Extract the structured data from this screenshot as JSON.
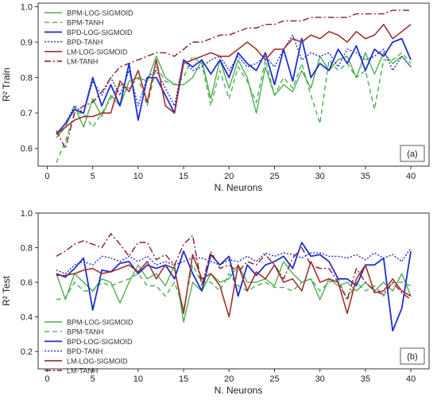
{
  "chart_data": [
    {
      "type": "line",
      "panel_tag": "(a)",
      "xlabel": "N. Neurons",
      "ylabel": "R² Train",
      "xlim": [
        -1,
        42
      ],
      "ylim": [
        0.55,
        1.01
      ],
      "xticks": [
        0,
        5,
        10,
        15,
        20,
        25,
        30,
        35,
        40
      ],
      "yticks": [
        0.6,
        0.7,
        0.8,
        0.9,
        1.0
      ],
      "ytick_labels": [
        "0.6",
        "0.7",
        "0.8",
        "0.9",
        "1.0"
      ],
      "legend_position": "top-left",
      "x": [
        1,
        2,
        3,
        4,
        5,
        6,
        7,
        8,
        9,
        10,
        11,
        12,
        13,
        14,
        15,
        16,
        17,
        18,
        19,
        20,
        21,
        22,
        23,
        24,
        25,
        26,
        27,
        28,
        29,
        30,
        31,
        32,
        33,
        34,
        35,
        36,
        37,
        38,
        39,
        40
      ],
      "series": [
        {
          "name": "BPM-LOG-SIGMOID",
          "color": "#4caf50",
          "dash": "solid",
          "width": 1.4,
          "values": [
            0.63,
            0.66,
            0.72,
            0.66,
            0.74,
            0.69,
            0.75,
            0.72,
            0.79,
            0.8,
            0.79,
            0.86,
            0.8,
            0.78,
            0.78,
            0.8,
            0.85,
            0.74,
            0.85,
            0.77,
            0.85,
            0.8,
            0.7,
            0.83,
            0.75,
            0.78,
            0.76,
            0.82,
            0.77,
            0.86,
            0.82,
            0.85,
            0.86,
            0.8,
            0.87,
            0.81,
            0.87,
            0.84,
            0.86,
            0.83
          ]
        },
        {
          "name": "BPM-TANH",
          "color": "#4caf50",
          "dash": "6,4",
          "width": 1.4,
          "values": [
            0.56,
            0.62,
            0.7,
            0.7,
            0.66,
            0.7,
            0.74,
            0.78,
            0.77,
            0.8,
            0.72,
            0.83,
            0.79,
            0.78,
            0.8,
            0.86,
            0.84,
            0.72,
            0.82,
            0.74,
            0.83,
            0.79,
            0.73,
            0.85,
            0.75,
            0.8,
            0.77,
            0.84,
            0.75,
            0.67,
            0.85,
            0.82,
            0.84,
            0.8,
            0.82,
            0.71,
            0.85,
            0.85,
            0.87,
            0.84
          ]
        },
        {
          "name": "BPD-LOG-SIGMOID",
          "color": "#1f2fd0",
          "dash": "solid",
          "width": 1.8,
          "values": [
            0.64,
            0.67,
            0.71,
            0.7,
            0.8,
            0.72,
            0.78,
            0.72,
            0.84,
            0.68,
            0.8,
            0.8,
            0.75,
            0.7,
            0.85,
            0.83,
            0.85,
            0.81,
            0.85,
            0.8,
            0.87,
            0.84,
            0.82,
            0.87,
            0.78,
            0.88,
            0.79,
            0.91,
            0.8,
            0.84,
            0.82,
            0.88,
            0.84,
            0.89,
            0.82,
            0.88,
            0.86,
            0.9,
            0.91,
            0.85
          ]
        },
        {
          "name": "BPD-TANH",
          "color": "#1f2fd0",
          "dash": "2,2",
          "width": 1.4,
          "values": [
            0.64,
            0.67,
            0.72,
            0.7,
            0.79,
            0.75,
            0.8,
            0.75,
            0.82,
            0.72,
            0.8,
            0.82,
            0.77,
            0.72,
            0.85,
            0.82,
            0.83,
            0.85,
            0.86,
            0.82,
            0.86,
            0.83,
            0.84,
            0.86,
            0.83,
            0.88,
            0.92,
            0.85,
            0.87,
            0.86,
            0.87,
            0.83,
            0.88,
            0.87,
            0.85,
            0.86,
            0.88,
            0.82,
            0.86,
            0.83
          ]
        },
        {
          "name": "LM-LOG-SIGMOID",
          "color": "#a33030",
          "dash": "solid",
          "width": 1.6,
          "values": [
            0.64,
            0.66,
            0.68,
            0.69,
            0.69,
            0.7,
            0.7,
            0.79,
            0.76,
            0.82,
            0.73,
            0.85,
            0.72,
            0.7,
            0.84,
            0.85,
            0.86,
            0.87,
            0.86,
            0.86,
            0.88,
            0.9,
            0.88,
            0.85,
            0.88,
            0.88,
            0.91,
            0.9,
            0.92,
            0.91,
            0.93,
            0.92,
            0.9,
            0.93,
            0.91,
            0.92,
            0.95,
            0.91,
            0.93,
            0.95
          ]
        },
        {
          "name": "LM-TANH",
          "color": "#8b1c24",
          "dash": "8,3,2,3",
          "width": 1.4,
          "values": [
            0.65,
            0.6,
            0.7,
            0.72,
            0.73,
            0.76,
            0.8,
            0.83,
            0.84,
            0.85,
            0.86,
            0.87,
            0.87,
            0.86,
            0.88,
            0.9,
            0.9,
            0.91,
            0.92,
            0.92,
            0.93,
            0.94,
            0.94,
            0.95,
            0.95,
            0.96,
            0.96,
            0.96,
            0.97,
            0.97,
            0.97,
            0.97,
            0.97,
            0.98,
            0.98,
            0.98,
            0.98,
            0.99,
            0.99,
            0.99
          ]
        }
      ]
    },
    {
      "type": "line",
      "panel_tag": "(b)",
      "xlabel": "N. Neurons",
      "ylabel": "R² Test",
      "xlim": [
        -1,
        42
      ],
      "ylim": [
        0.1,
        1.0
      ],
      "xticks": [
        0,
        5,
        10,
        15,
        20,
        25,
        30,
        35,
        40
      ],
      "yticks": [
        0.2,
        0.4,
        0.6,
        0.8,
        1.0
      ],
      "ytick_labels": [
        "0.2",
        "0.4",
        "0.6",
        "0.8",
        "1.0"
      ],
      "legend_position": "bottom-left",
      "x": [
        1,
        2,
        3,
        4,
        5,
        6,
        7,
        8,
        9,
        10,
        11,
        12,
        13,
        14,
        15,
        16,
        17,
        18,
        19,
        20,
        21,
        22,
        23,
        24,
        25,
        26,
        27,
        28,
        29,
        30,
        31,
        32,
        33,
        34,
        35,
        36,
        37,
        38,
        39,
        40
      ],
      "series": [
        {
          "name": "BPM-LOG-SIGMOID",
          "color": "#4caf50",
          "dash": "solid",
          "width": 1.4,
          "values": [
            0.65,
            0.5,
            0.65,
            0.6,
            0.55,
            0.62,
            0.6,
            0.48,
            0.6,
            0.7,
            0.62,
            0.65,
            0.58,
            0.7,
            0.37,
            0.6,
            0.55,
            0.65,
            0.6,
            0.62,
            0.7,
            0.6,
            0.6,
            0.62,
            0.58,
            0.72,
            0.65,
            0.6,
            0.62,
            0.5,
            0.62,
            0.58,
            0.6,
            0.55,
            0.6,
            0.55,
            0.6,
            0.55,
            0.65,
            0.52
          ]
        },
        {
          "name": "BPM-TANH",
          "color": "#4caf50",
          "dash": "6,4",
          "width": 1.4,
          "values": [
            0.5,
            0.51,
            0.6,
            0.55,
            0.55,
            0.6,
            0.58,
            0.6,
            0.62,
            0.65,
            0.58,
            0.58,
            0.52,
            0.6,
            0.45,
            0.7,
            0.6,
            0.6,
            0.55,
            0.65,
            0.58,
            0.55,
            0.58,
            0.6,
            0.57,
            0.57,
            0.55,
            0.6,
            0.62,
            0.55,
            0.6,
            0.62,
            0.5,
            0.6,
            0.55,
            0.58,
            0.52,
            0.6,
            0.6,
            0.58
          ]
        },
        {
          "name": "BPD-LOG-SIGMOID",
          "color": "#1f2fd0",
          "dash": "solid",
          "width": 1.8,
          "values": [
            0.65,
            0.63,
            0.68,
            0.74,
            0.44,
            0.67,
            0.66,
            0.71,
            0.72,
            0.65,
            0.7,
            0.68,
            0.7,
            0.62,
            0.78,
            0.65,
            0.55,
            0.76,
            0.7,
            0.75,
            0.52,
            0.7,
            0.64,
            0.7,
            0.72,
            0.75,
            0.68,
            0.83,
            0.75,
            0.76,
            0.72,
            0.62,
            0.62,
            0.58,
            0.7,
            0.7,
            0.74,
            0.32,
            0.45,
            0.78
          ]
        },
        {
          "name": "BPD-TANH",
          "color": "#1f2fd0",
          "dash": "2,2",
          "width": 1.4,
          "values": [
            0.67,
            0.65,
            0.7,
            0.72,
            0.7,
            0.75,
            0.74,
            0.72,
            0.75,
            0.72,
            0.75,
            0.7,
            0.72,
            0.7,
            0.72,
            0.74,
            0.74,
            0.72,
            0.7,
            0.73,
            0.72,
            0.75,
            0.72,
            0.77,
            0.75,
            0.77,
            0.76,
            0.74,
            0.77,
            0.77,
            0.75,
            0.75,
            0.74,
            0.76,
            0.73,
            0.77,
            0.74,
            0.76,
            0.72,
            0.8
          ]
        },
        {
          "name": "LM-LOG-SIGMOID",
          "color": "#a33030",
          "dash": "solid",
          "width": 1.6,
          "values": [
            0.64,
            0.64,
            0.65,
            0.67,
            0.68,
            0.65,
            0.66,
            0.68,
            0.7,
            0.66,
            0.72,
            0.62,
            0.7,
            0.68,
            0.42,
            0.76,
            0.62,
            0.65,
            0.58,
            0.4,
            0.7,
            0.55,
            0.66,
            0.62,
            0.7,
            0.6,
            0.62,
            0.55,
            0.72,
            0.6,
            0.62,
            0.6,
            0.42,
            0.62,
            0.7,
            0.54,
            0.55,
            0.62,
            0.55,
            0.52
          ]
        },
        {
          "name": "LM-TANH",
          "color": "#8b1c24",
          "dash": "8,3,2,3",
          "width": 1.4,
          "values": [
            0.75,
            0.78,
            0.82,
            0.84,
            0.82,
            0.8,
            0.88,
            0.82,
            0.75,
            0.83,
            0.83,
            0.73,
            0.76,
            0.7,
            0.82,
            0.87,
            0.58,
            0.78,
            0.68,
            0.7,
            0.66,
            0.72,
            0.7,
            0.76,
            0.7,
            0.62,
            0.74,
            0.8,
            0.7,
            0.68,
            0.68,
            0.6,
            0.5,
            0.68,
            0.6,
            0.55,
            0.53,
            0.6,
            0.54,
            0.5
          ]
        }
      ]
    }
  ]
}
